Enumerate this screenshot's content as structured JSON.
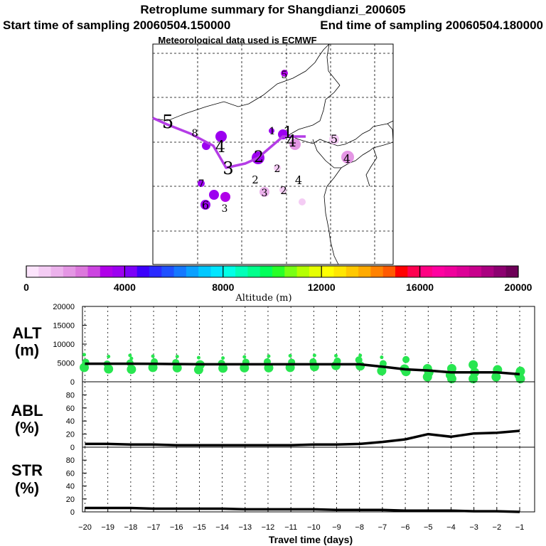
{
  "chart_data": [
    {
      "type": "map",
      "title": "Retroplume summary for Shangdianzi_200605",
      "subtitle_start": "Start time of sampling 20060504.150000",
      "subtitle_end": "End time of sampling 20060504.180000",
      "subtitle_met": "Meteorological data used is ECMWF",
      "trajectory_days": [
        "5",
        "4",
        "3",
        "2",
        "1"
      ],
      "plume_labels": [
        "1",
        "1",
        "2",
        "2",
        "2",
        "2",
        "3",
        "3",
        "3",
        "4",
        "4",
        "4",
        "4",
        "5",
        "5",
        "5",
        "6",
        "7",
        "8"
      ]
    },
    {
      "type": "colorbar",
      "label": "Altitude (m)",
      "ticks": [
        "0",
        "4000",
        "8000",
        "12000",
        "16000",
        "20000"
      ],
      "range": [
        0,
        20000
      ],
      "colors": [
        "#fce4fc",
        "#f4ccf4",
        "#ecb2ec",
        "#e496e4",
        "#dc78dc",
        "#cc44e0",
        "#b000e8",
        "#9c00f0",
        "#7c00f8",
        "#3c00fc",
        "#2a2aff",
        "#1e50ff",
        "#1478ff",
        "#0aa0ff",
        "#00c8ff",
        "#00e6ff",
        "#00ffe6",
        "#00ffb8",
        "#00ff8c",
        "#00ff5a",
        "#28ff28",
        "#78ff14",
        "#b4ff00",
        "#e6ff00",
        "#ffff00",
        "#ffe600",
        "#ffc800",
        "#ffaa00",
        "#ff8200",
        "#ff5a00",
        "#ff0000",
        "#ff0050",
        "#ff0082",
        "#ff00a0",
        "#f0009c",
        "#dc0096",
        "#c8008c",
        "#aa0080",
        "#8c0070",
        "#6e0058"
      ]
    },
    {
      "type": "line+scatter",
      "panel": "ALT",
      "ylabel": "ALT\n(m)",
      "ylim": [
        0,
        20000
      ],
      "yticks": [
        "0",
        "5000",
        "10000",
        "15000",
        "20000"
      ],
      "x": [
        -20,
        -19,
        -18,
        -17,
        -16,
        -15,
        -14,
        -13,
        -12,
        -11,
        -10,
        -9,
        -8,
        -7,
        -6,
        -5,
        -4,
        -3,
        -2,
        -1
      ],
      "mean_line": [
        4800,
        4800,
        4800,
        4750,
        4700,
        4650,
        4650,
        4650,
        4650,
        4650,
        4650,
        4650,
        4650,
        4000,
        3300,
        3000,
        2500,
        2500,
        2500,
        2000
      ],
      "scatter_points": [
        [
          -20,
          7200
        ],
        [
          -20,
          5200
        ],
        [
          -20,
          3800
        ],
        [
          -19,
          6700
        ],
        [
          -19,
          4700
        ],
        [
          -19,
          3400
        ],
        [
          -18,
          7000
        ],
        [
          -18,
          6200
        ],
        [
          -18,
          5000
        ],
        [
          -18,
          3300
        ],
        [
          -17,
          6800
        ],
        [
          -17,
          5300
        ],
        [
          -17,
          3800
        ],
        [
          -16,
          6700
        ],
        [
          -16,
          5100
        ],
        [
          -16,
          3700
        ],
        [
          -15,
          6400
        ],
        [
          -15,
          4500
        ],
        [
          -15,
          3200
        ],
        [
          -14,
          6300
        ],
        [
          -14,
          4900
        ],
        [
          -14,
          3600
        ],
        [
          -13,
          6600
        ],
        [
          -13,
          5200
        ],
        [
          -13,
          3700
        ],
        [
          -12,
          6800
        ],
        [
          -12,
          5300
        ],
        [
          -12,
          3700
        ],
        [
          -11,
          6900
        ],
        [
          -11,
          5200
        ],
        [
          -11,
          3800
        ],
        [
          -10,
          7000
        ],
        [
          -10,
          5300
        ],
        [
          -10,
          4000
        ],
        [
          -9,
          6900
        ],
        [
          -9,
          5500
        ],
        [
          -9,
          4300
        ],
        [
          -8,
          7000
        ],
        [
          -8,
          5800
        ],
        [
          -8,
          4200
        ],
        [
          -7,
          6500
        ],
        [
          -7,
          4800
        ],
        [
          -7,
          2900
        ],
        [
          -6,
          5900
        ],
        [
          -6,
          3400
        ],
        [
          -6,
          2700
        ],
        [
          -5,
          3500
        ],
        [
          -5,
          2500
        ],
        [
          -5,
          1300
        ],
        [
          -4,
          3500
        ],
        [
          -4,
          1800
        ],
        [
          -4,
          800
        ],
        [
          -3,
          4500
        ],
        [
          -3,
          2500
        ],
        [
          -3,
          800
        ],
        [
          -2,
          3200
        ],
        [
          -2,
          1300
        ],
        [
          -1,
          2800
        ],
        [
          -1,
          1800
        ],
        [
          -1,
          800
        ]
      ]
    },
    {
      "type": "line",
      "panel": "ABL",
      "ylabel": "ABL\n(%)",
      "ylim": [
        0,
        100
      ],
      "yticks": [
        "0",
        "20",
        "40",
        "60",
        "80"
      ],
      "x": [
        -20,
        -19,
        -18,
        -17,
        -16,
        -15,
        -14,
        -13,
        -12,
        -11,
        -10,
        -9,
        -8,
        -7,
        -6,
        -5,
        -4,
        -3,
        -2,
        -1
      ],
      "values": [
        5,
        5,
        4,
        4,
        3,
        3,
        3,
        3,
        3,
        3,
        4,
        4,
        5,
        8,
        12,
        20,
        16,
        21,
        22,
        25
      ]
    },
    {
      "type": "line",
      "panel": "STR",
      "ylabel": "STR\n(%)",
      "ylim": [
        0,
        100
      ],
      "yticks": [
        "0",
        "20",
        "40",
        "60",
        "80"
      ],
      "x": [
        -20,
        -19,
        -18,
        -17,
        -16,
        -15,
        -14,
        -13,
        -12,
        -11,
        -10,
        -9,
        -8,
        -7,
        -6,
        -5,
        -4,
        -3,
        -2,
        -1
      ],
      "values": [
        6,
        6,
        6,
        5,
        5,
        5,
        5,
        4,
        4,
        4,
        4,
        3,
        3,
        3,
        2,
        2,
        2,
        1,
        1,
        0
      ],
      "xlabel": "Travel time (days)",
      "xticks": [
        "−20",
        "−19",
        "−18",
        "−17",
        "−16",
        "−15",
        "−14",
        "−13",
        "−12",
        "−11",
        "−10",
        "−9",
        "−8",
        "−7",
        "−6",
        "−5",
        "−4",
        "−3",
        "−2",
        "−1"
      ]
    }
  ]
}
